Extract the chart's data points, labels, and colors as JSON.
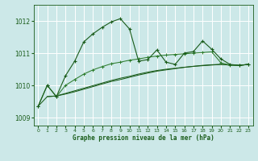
{
  "xlabel": "Graphe pression niveau de la mer (hPa)",
  "bg_color": "#cce8e8",
  "grid_color": "#ffffff",
  "c1": "#1a5c1a",
  "c2": "#2e7d2e",
  "xlim": [
    -0.5,
    23.5
  ],
  "ylim": [
    1008.75,
    1012.5
  ],
  "yticks": [
    1009,
    1010,
    1011,
    1012
  ],
  "xticks": [
    0,
    1,
    2,
    3,
    4,
    5,
    6,
    7,
    8,
    9,
    10,
    11,
    12,
    13,
    14,
    15,
    16,
    17,
    18,
    19,
    20,
    21,
    22,
    23
  ],
  "s1_x": [
    0,
    1,
    2,
    3,
    4,
    5,
    6,
    7,
    8,
    9,
    10,
    11,
    12,
    13,
    14,
    15,
    16,
    17,
    18,
    19,
    20,
    21,
    22,
    23
  ],
  "s1_y": [
    1009.35,
    1010.0,
    1009.65,
    1010.3,
    1010.75,
    1011.35,
    1011.6,
    1011.8,
    1011.97,
    1012.07,
    1011.75,
    1010.75,
    1010.8,
    1011.1,
    1010.72,
    1010.65,
    1011.0,
    1011.05,
    1011.38,
    1011.12,
    1010.82,
    1010.65,
    1010.62,
    1010.65
  ],
  "s2_x": [
    0,
    1,
    2,
    3,
    4,
    5,
    6,
    7,
    8,
    9,
    10,
    11,
    12,
    13,
    14,
    15,
    16,
    17,
    18,
    19,
    20,
    21,
    22,
    23
  ],
  "s2_y": [
    1009.35,
    1010.0,
    1009.65,
    1010.0,
    1010.18,
    1010.35,
    1010.48,
    1010.58,
    1010.67,
    1010.72,
    1010.78,
    1010.82,
    1010.87,
    1010.91,
    1010.94,
    1010.96,
    1010.98,
    1011.0,
    1011.02,
    1011.04,
    1010.7,
    1010.63,
    1010.62,
    1010.65
  ],
  "s3_x": [
    0,
    1,
    2,
    3,
    4,
    5,
    6,
    7,
    8,
    9,
    10,
    11,
    12,
    13,
    14,
    15,
    16,
    17,
    18,
    19,
    20,
    21,
    22,
    23
  ],
  "s3_y": [
    1009.35,
    1009.65,
    1009.67,
    1009.73,
    1009.8,
    1009.88,
    1009.96,
    1010.04,
    1010.12,
    1010.18,
    1010.25,
    1010.32,
    1010.38,
    1010.44,
    1010.48,
    1010.52,
    1010.56,
    1010.59,
    1010.62,
    1010.64,
    1010.65,
    1010.63,
    1010.62,
    1010.65
  ],
  "s4_x": [
    1,
    2,
    3,
    4,
    5,
    6,
    7,
    8,
    9,
    10,
    11,
    12,
    13,
    14,
    15,
    16,
    17,
    18,
    19,
    20,
    21,
    22,
    23
  ],
  "s4_y": [
    1009.65,
    1009.67,
    1009.75,
    1009.83,
    1009.91,
    1009.99,
    1010.07,
    1010.15,
    1010.22,
    1010.28,
    1010.35,
    1010.41,
    1010.46,
    1010.5,
    1010.53,
    1010.56,
    1010.59,
    1010.61,
    1010.63,
    1010.65,
    1010.63,
    1010.62,
    1010.65
  ]
}
